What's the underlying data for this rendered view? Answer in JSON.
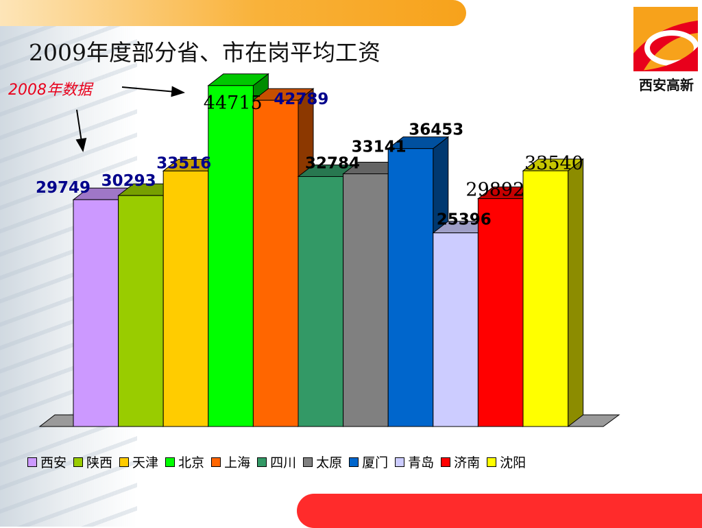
{
  "title": "2009年度部分省、市在岗平均工资",
  "note": "2008年数据",
  "logo": {
    "text": "西安高新",
    "icon": "xian-gaoxin-logo-icon"
  },
  "colors": {
    "top_band": "#f7a21b",
    "bottom_band": "#ff2b2b",
    "note": "#e8001c"
  },
  "chart_data": {
    "type": "bar",
    "title": "2009年度部分省、市在岗平均工资",
    "xlabel": "",
    "ylabel": "",
    "ylim": [
      0,
      50000
    ],
    "grid": false,
    "legend": "bottom",
    "categories": [
      "西安",
      "陕西",
      "天津",
      "北京",
      "上海",
      "四川",
      "太原",
      "厦门",
      "青岛",
      "济南",
      "沈阳"
    ],
    "values": [
      29749,
      30293,
      33516,
      44715,
      42789,
      32784,
      33141,
      36453,
      25396,
      29892,
      33540
    ],
    "colors": [
      "#cc99ff",
      "#99cc00",
      "#ffcc00",
      "#00ff00",
      "#ff6600",
      "#339966",
      "#808080",
      "#0066cc",
      "#ccccff",
      "#ff0000",
      "#ffff00"
    ],
    "label_colors": [
      "#00008b",
      "#00008b",
      "#00008b",
      "#000000",
      "#00008b",
      "#000000",
      "#000000",
      "#000000",
      "#000000",
      "#000000",
      "#000000"
    ]
  }
}
